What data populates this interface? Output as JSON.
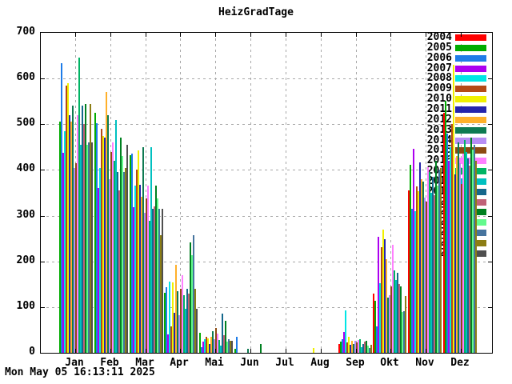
{
  "title": "HeizGradTage",
  "timestamp": "Mon May 05 16:13:11 2025",
  "chart_data": {
    "type": "bar",
    "title": "HeizGradTage",
    "xlabel": "",
    "ylabel": "",
    "ylim": [
      0,
      700
    ],
    "yticks": [
      0,
      100,
      200,
      300,
      400,
      500,
      600,
      700
    ],
    "grid": true,
    "legend_position": "top-right",
    "categories": [
      "Jan",
      "Feb",
      "Mar",
      "Apr",
      "Mai",
      "Jun",
      "Jul",
      "Aug",
      "Sep",
      "Okt",
      "Nov",
      "Dez"
    ],
    "series": [
      {
        "name": "2004",
        "color": "#ff0000",
        "values": [
          null,
          null,
          null,
          null,
          null,
          null,
          null,
          null,
          20,
          130,
          355,
          525
        ]
      },
      {
        "name": "2005",
        "color": "#00ac00",
        "values": [
          505,
          525,
          432,
          131,
          44,
          9,
          0,
          0,
          25,
          114,
          411,
          551
        ]
      },
      {
        "name": "2006",
        "color": "#1e7ce8",
        "values": [
          633,
          502,
          435,
          143,
          12,
          35,
          0,
          0,
          30,
          58,
          315,
          480
        ]
      },
      {
        "name": "2007",
        "color": "#ac00f0",
        "values": [
          437,
          360,
          318,
          41,
          25,
          0,
          0,
          0,
          45,
          253,
          446,
          420
        ]
      },
      {
        "name": "2008",
        "color": "#00e5e5",
        "values": [
          485,
          405,
          365,
          155,
          30,
          0,
          0,
          0,
          93,
          152,
          310,
          450
        ]
      },
      {
        "name": "2009",
        "color": "#b44a16",
        "values": [
          585,
          490,
          400,
          58,
          35,
          0,
          0,
          0,
          23,
          231,
          364,
          500
        ]
      },
      {
        "name": "2010",
        "color": "#f0f000",
        "values": [
          590,
          475,
          443,
          154,
          32,
          0,
          0,
          10,
          35,
          270,
          353,
          630
        ]
      },
      {
        "name": "2011",
        "color": "#2424ac",
        "values": [
          520,
          470,
          368,
          87,
          20,
          0,
          0,
          0,
          18,
          248,
          417,
          390
        ]
      },
      {
        "name": "2012",
        "color": "#ffb02a",
        "values": [
          505,
          570,
          341,
          192,
          35,
          0,
          0,
          0,
          26,
          205,
          380,
          430
        ]
      },
      {
        "name": "2013",
        "color": "#0e7a52",
        "values": [
          540,
          520,
          450,
          134,
          48,
          9,
          0,
          0,
          20,
          120,
          375,
          460
        ]
      },
      {
        "name": "2014",
        "color": "#b78ef5",
        "values": [
          405,
          380,
          306,
          82,
          30,
          0,
          0,
          0,
          26,
          126,
          340,
          415
        ]
      },
      {
        "name": "2015",
        "color": "#8c4a12",
        "values": [
          415,
          440,
          338,
          140,
          55,
          0,
          0,
          0,
          22,
          145,
          330,
          370
        ]
      },
      {
        "name": "2016",
        "color": "#ff80ff",
        "values": [
          520,
          460,
          365,
          169,
          42,
          0,
          0,
          0,
          28,
          236,
          406,
          435
        ]
      },
      {
        "name": "2017",
        "color": "#00b464",
        "values": [
          645,
          420,
          289,
          126,
          28,
          0,
          0,
          0,
          30,
          180,
          395,
          465
        ]
      },
      {
        "name": "2018",
        "color": "#00c0c0",
        "values": [
          455,
          510,
          450,
          96,
          15,
          0,
          0,
          0,
          12,
          160,
          350,
          440
        ]
      },
      {
        "name": "2019",
        "color": "#15688c",
        "values": [
          540,
          395,
          315,
          140,
          85,
          0,
          0,
          0,
          20,
          175,
          385,
          425
        ]
      },
      {
        "name": "2020",
        "color": "#c06278",
        "values": [
          500,
          355,
          320,
          130,
          38,
          0,
          0,
          0,
          24,
          150,
          345,
          410
        ]
      },
      {
        "name": "2021",
        "color": "#008020",
        "values": [
          545,
          470,
          366,
          242,
          70,
          20,
          0,
          0,
          26,
          145,
          420,
          470
        ]
      },
      {
        "name": "2022",
        "color": "#63fa8c",
        "values": [
          455,
          430,
          338,
          213,
          25,
          0,
          0,
          0,
          15,
          90,
          365,
          445
        ]
      },
      {
        "name": "2023",
        "color": "#46749e",
        "values": [
          460,
          395,
          315,
          257,
          30,
          0,
          0,
          0,
          10,
          91,
          400,
          455
        ]
      },
      {
        "name": "2024",
        "color": "#8c7d14",
        "values": [
          545,
          405,
          257,
          140,
          26,
          0,
          0,
          0,
          18,
          125,
          405,
          420
        ]
      },
      {
        "name": "2025",
        "color": "#4f4f4f",
        "values": [
          460,
          455,
          315,
          96,
          26,
          null,
          null,
          null,
          null,
          null,
          null,
          null
        ]
      }
    ]
  }
}
